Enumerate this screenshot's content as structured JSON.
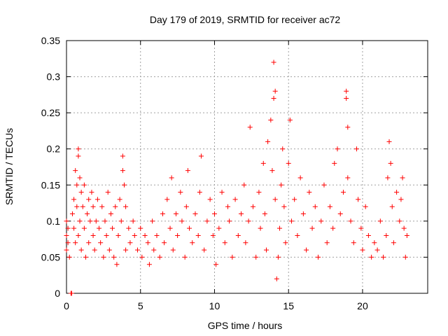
{
  "chart_data": {
    "type": "scatter",
    "title": "Day 179 of 2019, SRMTID for receiver ac72",
    "xlabel": "GPS time / hours",
    "ylabel": "SRMTID / TECUs",
    "xlim": [
      0,
      24.4
    ],
    "ylim": [
      0,
      0.35
    ],
    "x_ticks": [
      0,
      5,
      10,
      15,
      20
    ],
    "x_tick_labels": [
      "0",
      "5",
      "10",
      "15",
      "20"
    ],
    "y_ticks": [
      0,
      0.05,
      0.1,
      0.15,
      0.2,
      0.25,
      0.3,
      0.35
    ],
    "y_tick_labels": [
      "0",
      "0.05",
      "0.1",
      "0.15",
      "0.2",
      "0.25",
      "0.3",
      "0.35"
    ],
    "grid": true,
    "marker": "plus",
    "series": [
      {
        "name": "SRMTID",
        "color": "#ff0000",
        "points": [
          [
            0.0,
            0.08
          ],
          [
            0.0,
            0.1
          ],
          [
            0.0,
            0.06
          ],
          [
            0.1,
            0.09
          ],
          [
            0.1,
            0.07
          ],
          [
            0.2,
            0.05
          ],
          [
            0.3,
            0.0
          ],
          [
            0.35,
            0.0
          ],
          [
            0.4,
            0.11
          ],
          [
            0.5,
            0.09
          ],
          [
            0.5,
            0.13
          ],
          [
            0.6,
            0.07
          ],
          [
            0.6,
            0.17
          ],
          [
            0.7,
            0.15
          ],
          [
            0.7,
            0.12
          ],
          [
            0.8,
            0.08
          ],
          [
            0.8,
            0.19
          ],
          [
            0.8,
            0.2
          ],
          [
            0.9,
            0.16
          ],
          [
            0.9,
            0.1
          ],
          [
            1.0,
            0.14
          ],
          [
            1.0,
            0.06
          ],
          [
            1.1,
            0.12
          ],
          [
            1.2,
            0.09
          ],
          [
            1.2,
            0.15
          ],
          [
            1.3,
            0.05
          ],
          [
            1.4,
            0.11
          ],
          [
            1.5,
            0.13
          ],
          [
            1.5,
            0.07
          ],
          [
            1.6,
            0.1
          ],
          [
            1.7,
            0.14
          ],
          [
            1.8,
            0.08
          ],
          [
            1.8,
            0.12
          ],
          [
            1.9,
            0.06
          ],
          [
            2.0,
            0.1
          ],
          [
            2.1,
            0.13
          ],
          [
            2.2,
            0.09
          ],
          [
            2.3,
            0.07
          ],
          [
            2.4,
            0.12
          ],
          [
            2.5,
            0.05
          ],
          [
            2.6,
            0.1
          ],
          [
            2.7,
            0.08
          ],
          [
            2.8,
            0.14
          ],
          [
            2.9,
            0.06
          ],
          [
            3.0,
            0.11
          ],
          [
            3.1,
            0.09
          ],
          [
            3.2,
            0.05
          ],
          [
            3.3,
            0.12
          ],
          [
            3.4,
            0.04
          ],
          [
            3.5,
            0.08
          ],
          [
            3.6,
            0.13
          ],
          [
            3.7,
            0.1
          ],
          [
            3.8,
            0.17
          ],
          [
            3.8,
            0.19
          ],
          [
            3.9,
            0.15
          ],
          [
            4.0,
            0.12
          ],
          [
            4.0,
            0.06
          ],
          [
            4.2,
            0.09
          ],
          [
            4.3,
            0.07
          ],
          [
            4.5,
            0.1
          ],
          [
            4.6,
            0.08
          ],
          [
            4.8,
            0.06
          ],
          [
            5.0,
            0.09
          ],
          [
            5.1,
            0.05
          ],
          [
            5.3,
            0.08
          ],
          [
            5.5,
            0.07
          ],
          [
            5.6,
            0.04
          ],
          [
            5.8,
            0.1
          ],
          [
            5.9,
            0.06
          ],
          [
            6.1,
            0.08
          ],
          [
            6.3,
            0.05
          ],
          [
            6.5,
            0.11
          ],
          [
            6.6,
            0.07
          ],
          [
            6.8,
            0.13
          ],
          [
            7.0,
            0.09
          ],
          [
            7.1,
            0.16
          ],
          [
            7.2,
            0.06
          ],
          [
            7.4,
            0.11
          ],
          [
            7.5,
            0.08
          ],
          [
            7.7,
            0.14
          ],
          [
            7.8,
            0.1
          ],
          [
            8.0,
            0.05
          ],
          [
            8.1,
            0.12
          ],
          [
            8.2,
            0.17
          ],
          [
            8.3,
            0.09
          ],
          [
            8.5,
            0.07
          ],
          [
            8.7,
            0.11
          ],
          [
            8.9,
            0.08
          ],
          [
            9.0,
            0.14
          ],
          [
            9.1,
            0.19
          ],
          [
            9.3,
            0.06
          ],
          [
            9.5,
            0.1
          ],
          [
            9.7,
            0.13
          ],
          [
            9.9,
            0.08
          ],
          [
            10.0,
            0.11
          ],
          [
            10.1,
            0.04
          ],
          [
            10.3,
            0.09
          ],
          [
            10.5,
            0.14
          ],
          [
            10.7,
            0.07
          ],
          [
            10.9,
            0.12
          ],
          [
            11.0,
            0.1
          ],
          [
            11.2,
            0.05
          ],
          [
            11.4,
            0.13
          ],
          [
            11.6,
            0.08
          ],
          [
            11.8,
            0.11
          ],
          [
            12.0,
            0.15
          ],
          [
            12.1,
            0.07
          ],
          [
            12.3,
            0.1
          ],
          [
            12.4,
            0.23
          ],
          [
            12.6,
            0.12
          ],
          [
            12.8,
            0.05
          ],
          [
            13.0,
            0.14
          ],
          [
            13.1,
            0.09
          ],
          [
            13.3,
            0.18
          ],
          [
            13.4,
            0.11
          ],
          [
            13.5,
            0.06
          ],
          [
            13.6,
            0.21
          ],
          [
            13.8,
            0.24
          ],
          [
            13.9,
            0.17
          ],
          [
            14.0,
            0.27
          ],
          [
            14.0,
            0.32
          ],
          [
            14.1,
            0.28
          ],
          [
            14.1,
            0.13
          ],
          [
            14.2,
            0.02
          ],
          [
            14.3,
            0.05
          ],
          [
            14.4,
            0.09
          ],
          [
            14.5,
            0.15
          ],
          [
            14.6,
            0.2
          ],
          [
            14.7,
            0.12
          ],
          [
            14.8,
            0.07
          ],
          [
            15.0,
            0.18
          ],
          [
            15.1,
            0.24
          ],
          [
            15.2,
            0.1
          ],
          [
            15.4,
            0.13
          ],
          [
            15.6,
            0.08
          ],
          [
            15.8,
            0.16
          ],
          [
            16.0,
            0.11
          ],
          [
            16.2,
            0.06
          ],
          [
            16.4,
            0.14
          ],
          [
            16.6,
            0.09
          ],
          [
            16.8,
            0.12
          ],
          [
            17.0,
            0.05
          ],
          [
            17.2,
            0.1
          ],
          [
            17.4,
            0.15
          ],
          [
            17.6,
            0.07
          ],
          [
            17.8,
            0.12
          ],
          [
            18.0,
            0.09
          ],
          [
            18.1,
            0.18
          ],
          [
            18.3,
            0.2
          ],
          [
            18.5,
            0.11
          ],
          [
            18.7,
            0.14
          ],
          [
            18.9,
            0.27
          ],
          [
            18.9,
            0.28
          ],
          [
            19.0,
            0.23
          ],
          [
            19.0,
            0.16
          ],
          [
            19.2,
            0.1
          ],
          [
            19.4,
            0.07
          ],
          [
            19.6,
            0.2
          ],
          [
            19.7,
            0.13
          ],
          [
            19.9,
            0.09
          ],
          [
            20.0,
            0.06
          ],
          [
            20.2,
            0.12
          ],
          [
            20.4,
            0.08
          ],
          [
            20.6,
            0.05
          ],
          [
            20.8,
            0.07
          ],
          [
            21.0,
            0.06
          ],
          [
            21.2,
            0.1
          ],
          [
            21.4,
            0.05
          ],
          [
            21.6,
            0.08
          ],
          [
            21.7,
            0.16
          ],
          [
            21.8,
            0.21
          ],
          [
            21.9,
            0.18
          ],
          [
            22.0,
            0.12
          ],
          [
            22.1,
            0.07
          ],
          [
            22.3,
            0.14
          ],
          [
            22.5,
            0.1
          ],
          [
            22.6,
            0.13
          ],
          [
            22.7,
            0.16
          ],
          [
            22.8,
            0.09
          ],
          [
            22.9,
            0.05
          ],
          [
            23.0,
            0.08
          ]
        ]
      }
    ]
  }
}
